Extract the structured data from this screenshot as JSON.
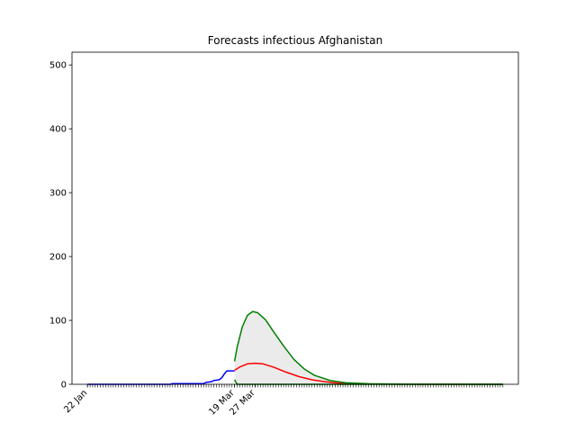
{
  "chart_data": {
    "type": "line",
    "title": "Forecasts infectious Afghanistan",
    "xlabel": "",
    "ylabel": "",
    "ylim": [
      0,
      520
    ],
    "yticks": [
      0,
      100,
      200,
      300,
      400,
      500
    ],
    "xlim": [
      "2020-01-16",
      "2020-07-07"
    ],
    "xticks": [
      {
        "date": "2020-01-22",
        "label": "22 Jan"
      },
      {
        "date": "2020-03-19",
        "label": "19 Mar"
      },
      {
        "date": "2020-03-27",
        "label": "27 Mar"
      }
    ],
    "minor_ticks": {
      "start": "2020-01-22",
      "end": "2020-07-01",
      "step_days": 1
    },
    "grid": false,
    "legend": "none",
    "series": [
      {
        "role": "observed",
        "color": "#0000ff",
        "points": [
          [
            "2020-01-22",
            0
          ],
          [
            "2020-02-23",
            0
          ],
          [
            "2020-02-24",
            1
          ],
          [
            "2020-03-01",
            1
          ],
          [
            "2020-03-07",
            1
          ],
          [
            "2020-03-08",
            3
          ],
          [
            "2020-03-10",
            4
          ],
          [
            "2020-03-11",
            6
          ],
          [
            "2020-03-13",
            7
          ],
          [
            "2020-03-14",
            10
          ],
          [
            "2020-03-15",
            16
          ],
          [
            "2020-03-16",
            21
          ],
          [
            "2020-03-19",
            21
          ]
        ]
      },
      {
        "role": "forecast-central",
        "color": "#ff0000",
        "points": [
          [
            "2020-03-19",
            22
          ],
          [
            "2020-03-21",
            27
          ],
          [
            "2020-03-24",
            32
          ],
          [
            "2020-03-27",
            33
          ],
          [
            "2020-03-30",
            32
          ],
          [
            "2020-04-03",
            27
          ],
          [
            "2020-04-08",
            19
          ],
          [
            "2020-04-13",
            12
          ],
          [
            "2020-04-18",
            7
          ],
          [
            "2020-04-23",
            4
          ],
          [
            "2020-04-28",
            2
          ],
          [
            "2020-05-03",
            1
          ],
          [
            "2020-05-13",
            0.3
          ],
          [
            "2020-06-01",
            0
          ],
          [
            "2020-07-01",
            0
          ]
        ]
      },
      {
        "role": "forecast-upper",
        "color": "#008000",
        "points": [
          [
            "2020-03-19",
            36
          ],
          [
            "2020-03-20",
            58
          ],
          [
            "2020-03-22",
            90
          ],
          [
            "2020-03-24",
            108
          ],
          [
            "2020-03-26",
            114
          ],
          [
            "2020-03-28",
            112
          ],
          [
            "2020-03-31",
            101
          ],
          [
            "2020-04-03",
            83
          ],
          [
            "2020-04-07",
            60
          ],
          [
            "2020-04-11",
            39
          ],
          [
            "2020-04-15",
            24
          ],
          [
            "2020-04-19",
            14
          ],
          [
            "2020-04-25",
            6
          ],
          [
            "2020-05-01",
            2.5
          ],
          [
            "2020-05-10",
            0.8
          ],
          [
            "2020-05-25",
            0.2
          ],
          [
            "2020-07-01",
            0
          ]
        ]
      },
      {
        "role": "forecast-lower",
        "color": "#008000",
        "points": [
          [
            "2020-03-19",
            7
          ],
          [
            "2020-03-20",
            0
          ],
          [
            "2020-07-01",
            0
          ]
        ]
      }
    ],
    "band_fill_color": "#ebebeb"
  }
}
